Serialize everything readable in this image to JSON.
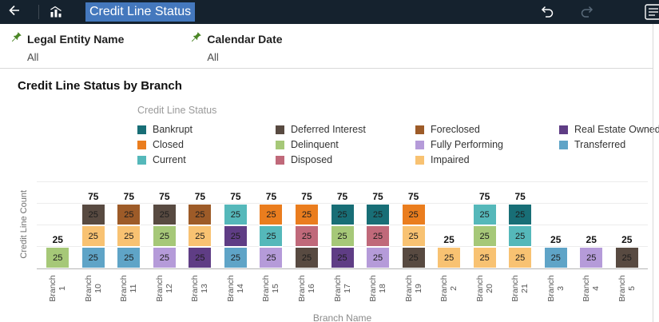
{
  "header": {
    "title": "Credit Line Status"
  },
  "filters": [
    {
      "label": "Legal Entity Name",
      "value": "All"
    },
    {
      "label": "Calendar Date",
      "value": "All"
    }
  ],
  "chart_data": {
    "type": "bar",
    "variant": "stacked",
    "title": "Credit Line Status by Branch",
    "legend_title": "Credit Line Status",
    "xlabel": "Branch Name",
    "ylabel": "Credit Line Count",
    "ylim": [
      0,
      100
    ],
    "gridlines": [
      25,
      50,
      75,
      100
    ],
    "segment_unit": 25,
    "legend_columns": [
      [
        "Bankrupt",
        "Closed",
        "Current"
      ],
      [
        "Deferred Interest",
        "Delinquent",
        "Disposed"
      ],
      [
        "Foreclosed",
        "Fully Performing",
        "Impaired"
      ],
      [
        "Real Estate Owned",
        "Transferred"
      ]
    ],
    "series_colors": {
      "Bankrupt": "#186e76",
      "Closed": "#ea7d1e",
      "Current": "#55b8ba",
      "Deferred Interest": "#584a41",
      "Delinquent": "#a6c878",
      "Disposed": "#c0697a",
      "Foreclosed": "#9d5b28",
      "Fully Performing": "#b59bd9",
      "Impaired": "#f8c272",
      "Real Estate Owned": "#5f3d85",
      "Transferred": "#5fa4c7"
    },
    "categories": [
      "Branch 1",
      "Branch 10",
      "Branch 11",
      "Branch 12",
      "Branch 13",
      "Branch 14",
      "Branch 15",
      "Branch 16",
      "Branch 17",
      "Branch 18",
      "Branch 19",
      "Branch 2",
      "Branch 20",
      "Branch 21",
      "Branch 3",
      "Branch 4",
      "Branch 5"
    ],
    "bars": [
      {
        "category": "Branch 1",
        "total": 25,
        "segments": [
          {
            "name": "Delinquent",
            "value": 25
          }
        ]
      },
      {
        "category": "Branch 10",
        "total": 75,
        "segments": [
          {
            "name": "Transferred",
            "value": 25
          },
          {
            "name": "Impaired",
            "value": 25
          },
          {
            "name": "Deferred Interest",
            "value": 25
          }
        ]
      },
      {
        "category": "Branch 11",
        "total": 75,
        "segments": [
          {
            "name": "Transferred",
            "value": 25
          },
          {
            "name": "Impaired",
            "value": 25
          },
          {
            "name": "Foreclosed",
            "value": 25
          }
        ]
      },
      {
        "category": "Branch 12",
        "total": 75,
        "segments": [
          {
            "name": "Fully Performing",
            "value": 25
          },
          {
            "name": "Delinquent",
            "value": 25
          },
          {
            "name": "Deferred Interest",
            "value": 25
          }
        ]
      },
      {
        "category": "Branch 13",
        "total": 75,
        "segments": [
          {
            "name": "Real Estate Owned",
            "value": 25
          },
          {
            "name": "Impaired",
            "value": 25
          },
          {
            "name": "Foreclosed",
            "value": 25
          }
        ]
      },
      {
        "category": "Branch 14",
        "total": 75,
        "segments": [
          {
            "name": "Transferred",
            "value": 25
          },
          {
            "name": "Real Estate Owned",
            "value": 25
          },
          {
            "name": "Current",
            "value": 25
          }
        ]
      },
      {
        "category": "Branch 15",
        "total": 75,
        "segments": [
          {
            "name": "Fully Performing",
            "value": 25
          },
          {
            "name": "Current",
            "value": 25
          },
          {
            "name": "Closed",
            "value": 25
          }
        ]
      },
      {
        "category": "Branch 16",
        "total": 75,
        "segments": [
          {
            "name": "Deferred Interest",
            "value": 25
          },
          {
            "name": "Disposed",
            "value": 25
          },
          {
            "name": "Closed",
            "value": 25
          }
        ]
      },
      {
        "category": "Branch 17",
        "total": 75,
        "segments": [
          {
            "name": "Real Estate Owned",
            "value": 25
          },
          {
            "name": "Delinquent",
            "value": 25
          },
          {
            "name": "Bankrupt",
            "value": 25
          }
        ]
      },
      {
        "category": "Branch 18",
        "total": 75,
        "segments": [
          {
            "name": "Fully Performing",
            "value": 25
          },
          {
            "name": "Disposed",
            "value": 25
          },
          {
            "name": "Bankrupt",
            "value": 25
          }
        ]
      },
      {
        "category": "Branch 19",
        "total": 75,
        "segments": [
          {
            "name": "Deferred Interest",
            "value": 25
          },
          {
            "name": "Impaired",
            "value": 25
          },
          {
            "name": "Closed",
            "value": 25
          }
        ]
      },
      {
        "category": "Branch 2",
        "total": 25,
        "segments": [
          {
            "name": "Impaired",
            "value": 25
          }
        ]
      },
      {
        "category": "Branch 20",
        "total": 75,
        "segments": [
          {
            "name": "Impaired",
            "value": 25
          },
          {
            "name": "Delinquent",
            "value": 25
          },
          {
            "name": "Current",
            "value": 25
          }
        ]
      },
      {
        "category": "Branch 21",
        "total": 75,
        "segments": [
          {
            "name": "Impaired",
            "value": 25
          },
          {
            "name": "Current",
            "value": 25
          },
          {
            "name": "Bankrupt",
            "value": 25
          }
        ]
      },
      {
        "category": "Branch 3",
        "total": 25,
        "segments": [
          {
            "name": "Transferred",
            "value": 25
          }
        ]
      },
      {
        "category": "Branch 4",
        "total": 25,
        "segments": [
          {
            "name": "Fully Performing",
            "value": 25
          }
        ]
      },
      {
        "category": "Branch 5",
        "total": 25,
        "segments": [
          {
            "name": "Deferred Interest",
            "value": 25
          }
        ]
      }
    ]
  }
}
